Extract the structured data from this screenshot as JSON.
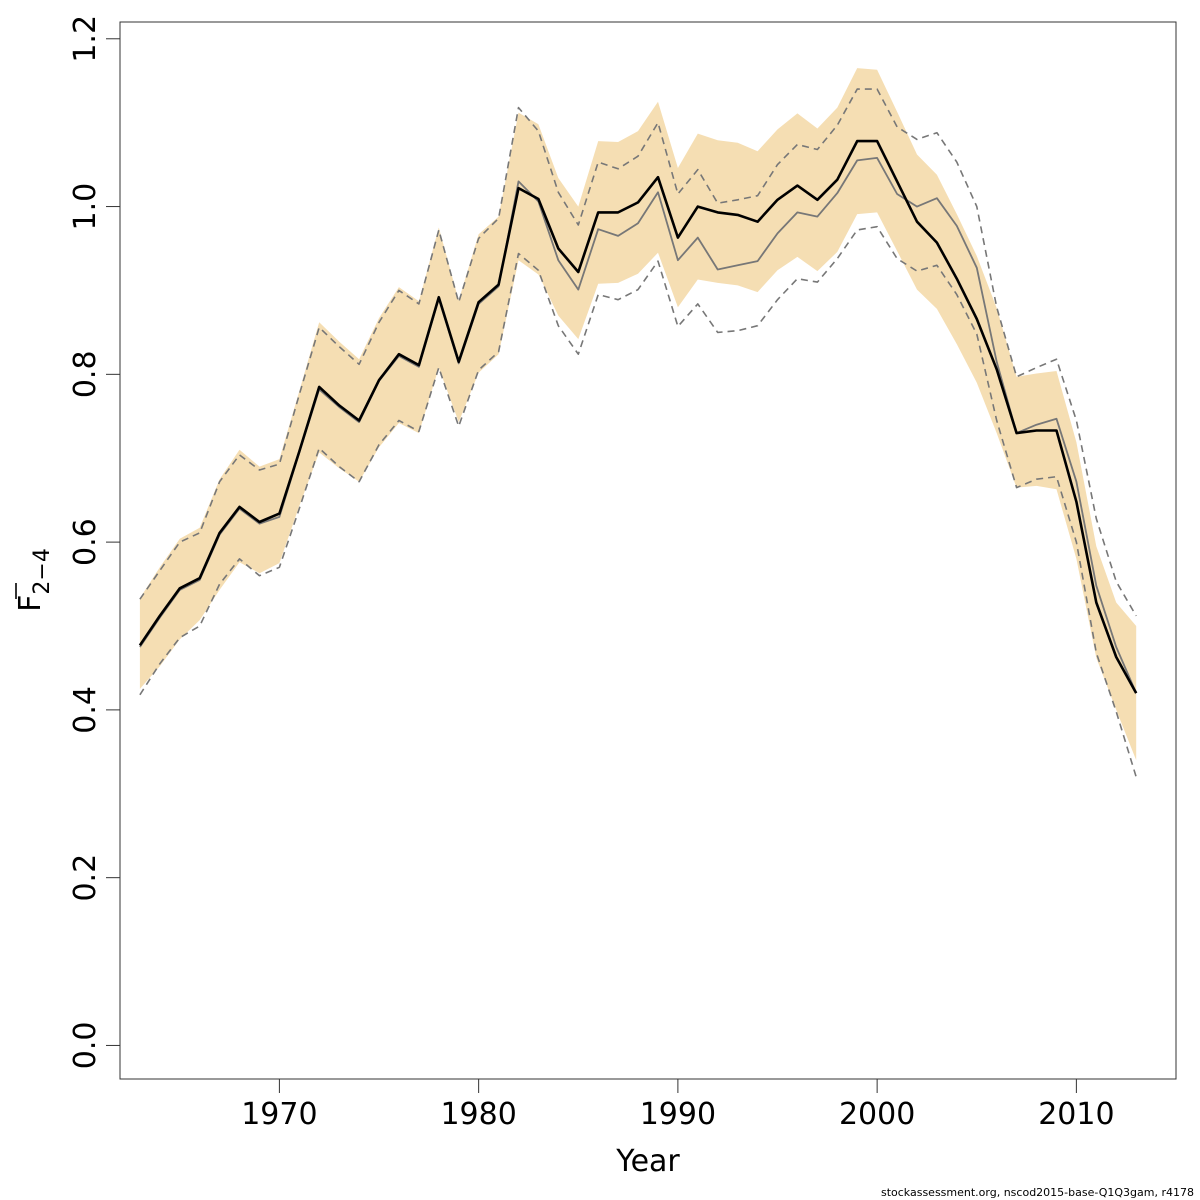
{
  "chart_data": {
    "type": "line",
    "xlabel": "Year",
    "ylabel": {
      "main": "F",
      "sub": "2−4"
    },
    "xlim": [
      1962,
      2015
    ],
    "ylim": [
      -0.04,
      1.22
    ],
    "x_ticks": [
      1970,
      1980,
      1990,
      2000,
      2010
    ],
    "y_ticks": [
      0.0,
      0.2,
      0.4,
      0.6,
      0.8,
      1.0,
      1.2
    ],
    "y_tick_labels": [
      "0.0",
      "0.2",
      "0.4",
      "0.6",
      "0.8",
      "1.0",
      "1.2"
    ],
    "x_tick_labels": [
      "1970",
      "1980",
      "1990",
      "2000",
      "2010"
    ],
    "colors": {
      "band": "#f5deb3",
      "estimate": "#000000",
      "alt_estimate": "#777777",
      "alt_ci": "#777777"
    },
    "years": [
      1963,
      1964,
      1965,
      1966,
      1967,
      1968,
      1969,
      1970,
      1971,
      1972,
      1973,
      1974,
      1975,
      1976,
      1977,
      1978,
      1979,
      1980,
      1981,
      1982,
      1983,
      1984,
      1985,
      1986,
      1987,
      1988,
      1989,
      1990,
      1991,
      1992,
      1993,
      1994,
      1995,
      1996,
      1997,
      1998,
      1999,
      2000,
      2001,
      2002,
      2003,
      2004,
      2005,
      2006,
      2007,
      2008,
      2009,
      2010,
      2011,
      2012,
      2013
    ],
    "series": [
      {
        "role": "estimate",
        "values": [
          0.477,
          0.512,
          0.545,
          0.557,
          0.611,
          0.642,
          0.624,
          0.634,
          0.708,
          0.785,
          0.763,
          0.745,
          0.793,
          0.824,
          0.811,
          0.892,
          0.815,
          0.886,
          0.907,
          1.022,
          1.009,
          0.95,
          0.922,
          0.993,
          0.993,
          1.005,
          1.035,
          0.963,
          1.0,
          0.993,
          0.99,
          0.982,
          1.008,
          1.025,
          1.008,
          1.032,
          1.078,
          1.078,
          1.03,
          0.982,
          0.957,
          0.914,
          0.866,
          0.806,
          0.73,
          0.733,
          0.733,
          0.648,
          0.528,
          0.463,
          0.42
        ]
      },
      {
        "role": "ci_low",
        "values": [
          0.425,
          0.452,
          0.484,
          0.507,
          0.543,
          0.576,
          0.563,
          0.575,
          0.643,
          0.707,
          0.688,
          0.672,
          0.713,
          0.742,
          0.73,
          0.808,
          0.743,
          0.802,
          0.824,
          0.936,
          0.919,
          0.87,
          0.842,
          0.908,
          0.909,
          0.92,
          0.945,
          0.88,
          0.913,
          0.909,
          0.906,
          0.898,
          0.924,
          0.94,
          0.923,
          0.946,
          0.991,
          0.993,
          0.947,
          0.901,
          0.878,
          0.836,
          0.79,
          0.73,
          0.665,
          0.667,
          0.663,
          0.58,
          0.462,
          0.4,
          0.34
        ]
      },
      {
        "role": "ci_high",
        "values": [
          0.533,
          0.57,
          0.604,
          0.617,
          0.675,
          0.71,
          0.69,
          0.699,
          0.78,
          0.862,
          0.839,
          0.818,
          0.867,
          0.904,
          0.887,
          0.975,
          0.888,
          0.967,
          0.988,
          1.112,
          1.098,
          1.034,
          1.0,
          1.078,
          1.077,
          1.09,
          1.125,
          1.046,
          1.087,
          1.079,
          1.076,
          1.066,
          1.092,
          1.111,
          1.093,
          1.118,
          1.165,
          1.163,
          1.113,
          1.062,
          1.038,
          0.991,
          0.941,
          0.879,
          0.797,
          0.801,
          0.804,
          0.719,
          0.595,
          0.528,
          0.5
        ]
      },
      {
        "role": "alt_estimate",
        "values": [
          0.475,
          0.51,
          0.543,
          0.555,
          0.609,
          0.64,
          0.622,
          0.63,
          0.707,
          0.782,
          0.761,
          0.743,
          0.792,
          0.822,
          0.809,
          0.89,
          0.813,
          0.884,
          0.905,
          1.03,
          1.006,
          0.936,
          0.901,
          0.973,
          0.965,
          0.98,
          1.017,
          0.936,
          0.963,
          0.925,
          0.93,
          0.935,
          0.968,
          0.993,
          0.988,
          1.016,
          1.055,
          1.058,
          1.015,
          1.0,
          1.01,
          0.977,
          0.927,
          0.815,
          0.73,
          0.74,
          0.747,
          0.672,
          0.548,
          0.475,
          0.42
        ]
      },
      {
        "role": "alt_ci_low",
        "values": [
          0.418,
          0.455,
          0.486,
          0.5,
          0.55,
          0.58,
          0.56,
          0.57,
          0.64,
          0.712,
          0.69,
          0.672,
          0.716,
          0.745,
          0.732,
          0.808,
          0.738,
          0.805,
          0.827,
          0.944,
          0.924,
          0.858,
          0.824,
          0.895,
          0.889,
          0.901,
          0.935,
          0.857,
          0.884,
          0.85,
          0.852,
          0.858,
          0.889,
          0.914,
          0.91,
          0.938,
          0.972,
          0.976,
          0.938,
          0.923,
          0.93,
          0.895,
          0.848,
          0.745,
          0.665,
          0.675,
          0.678,
          0.6,
          0.468,
          0.398,
          0.32
        ]
      },
      {
        "role": "alt_ci_high",
        "values": [
          0.532,
          0.566,
          0.6,
          0.611,
          0.672,
          0.704,
          0.686,
          0.693,
          0.776,
          0.856,
          0.833,
          0.812,
          0.862,
          0.9,
          0.884,
          0.972,
          0.886,
          0.962,
          0.986,
          1.118,
          1.09,
          1.017,
          0.978,
          1.053,
          1.045,
          1.06,
          1.1,
          1.015,
          1.044,
          1.004,
          1.008,
          1.013,
          1.05,
          1.074,
          1.068,
          1.097,
          1.14,
          1.14,
          1.095,
          1.08,
          1.088,
          1.053,
          1.0,
          0.88,
          0.797,
          0.808,
          0.818,
          0.745,
          0.628,
          0.553,
          0.512
        ]
      }
    ]
  },
  "footer": "stockassessment.org, nscod2015-base-Q1Q3gam, r4178"
}
